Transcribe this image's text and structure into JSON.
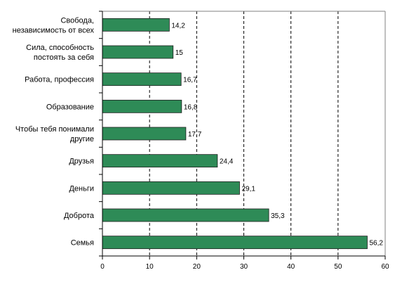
{
  "chart_data": {
    "type": "bar",
    "orientation": "horizontal",
    "categories": [
      [
        "Свобода,",
        "независимость от всех"
      ],
      [
        "Сила, способность",
        "постоять за себя"
      ],
      [
        "Работа, профессия"
      ],
      [
        "Образование"
      ],
      [
        "Чтобы тебя понимали",
        "другие"
      ],
      [
        "Друзья"
      ],
      [
        "Деньги"
      ],
      [
        "Доброта"
      ],
      [
        "Семья"
      ]
    ],
    "values": [
      14.2,
      15,
      16.7,
      16.8,
      17.7,
      24.4,
      29.1,
      35.3,
      56.2
    ],
    "value_labels": [
      "14,2",
      "15",
      "16,7",
      "16,8",
      "17,7",
      "24,4",
      "29,1",
      "35,3",
      "56,2"
    ],
    "xlim": [
      0,
      60
    ],
    "xticks": [
      0,
      10,
      20,
      30,
      40,
      50,
      60
    ],
    "gridlines": "vertical, dashed",
    "legend": "none",
    "colors": {
      "bar": "#2e8b57",
      "bar_border": "#1f1f1f",
      "grid": "#000000"
    }
  }
}
